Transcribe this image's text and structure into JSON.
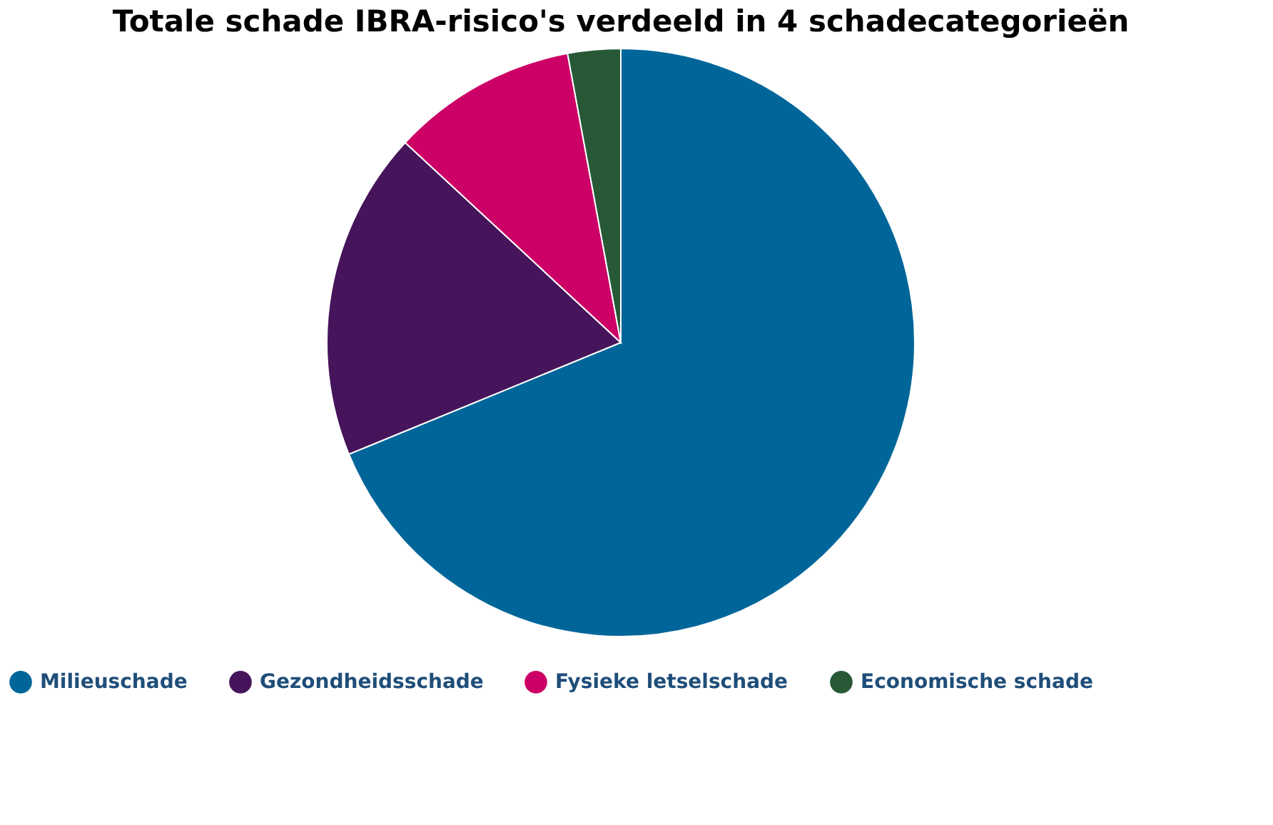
{
  "chart_data": {
    "type": "pie",
    "title": "Totale schade IBRA-risico's verdeeld in 4 schadecategorieën",
    "categories": [
      "Milieuschade",
      "Gezondheidsschade",
      "Fysieke letselschade",
      "Economische schade"
    ],
    "values": [
      68.8,
      18.1,
      10.2,
      2.9
    ],
    "colors": [
      "#006699",
      "#45145a",
      "#cc0066",
      "#275937"
    ],
    "legend": "bottom"
  }
}
